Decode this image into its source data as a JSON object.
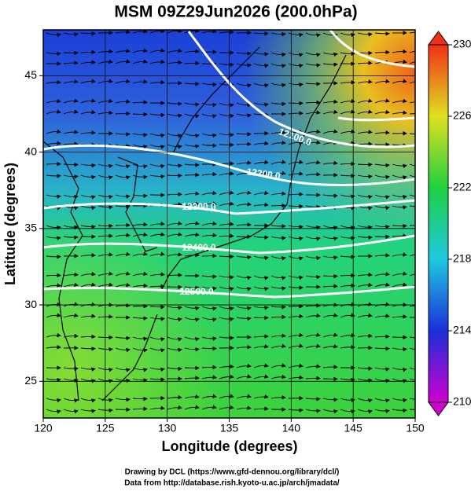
{
  "chart_data": {
    "type": "map",
    "title": "MSM 09Z29Jun2026 (200.0hPa)",
    "x_label": "Longitude (degrees)",
    "y_label": "Latitude (degrees)",
    "xlim": [
      120,
      150
    ],
    "ylim": [
      22.6,
      48
    ],
    "xticks": [
      120,
      125,
      130,
      135,
      140,
      145,
      150
    ],
    "yticks": [
      25,
      30,
      35,
      40,
      45
    ],
    "grid": true,
    "colorbar": {
      "lim": [
        210,
        230
      ],
      "ticks": [
        210,
        214,
        218,
        222,
        226,
        230
      ]
    },
    "contour_labels": [
      {
        "value": 12100,
        "label": "12100.0"
      },
      {
        "value": 12200,
        "label": "12200.0"
      },
      {
        "value": 12300,
        "label": "12300.0"
      },
      {
        "value": 12400,
        "label": "12400.0"
      },
      {
        "value": 12500,
        "label": "12500.0"
      }
    ],
    "footer": [
      "Drawing by DCL (https://www.gfd-dennou.org/library/dcl/)",
      "Data from http://database.rish.kyoto-u.ac.jp/arch/jmadata/"
    ]
  }
}
